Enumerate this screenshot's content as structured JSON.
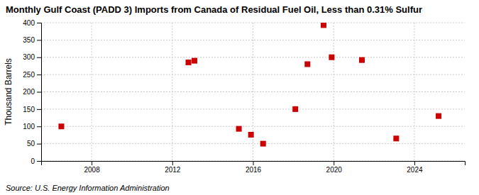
{
  "chart_data": {
    "type": "scatter",
    "title": "Monthly Gulf Coast (PADD 3) Imports from Canada of Residual Fuel Oil, Less than 0.31% Sulfur",
    "ylabel": "Thousand Barrels",
    "source": "Source: U.S. Energy Information Administration",
    "x": [
      2006.5,
      2012.8,
      2013.1,
      2015.3,
      2015.9,
      2016.5,
      2018.1,
      2018.7,
      2019.5,
      2019.9,
      2021.4,
      2023.1,
      2025.2
    ],
    "values": [
      100,
      285,
      290,
      93,
      76,
      50,
      150,
      280,
      393,
      300,
      292,
      65,
      130
    ],
    "color": "#cc0000",
    "marker": "square",
    "xlim": [
      2005.5,
      2026.5
    ],
    "ylim": [
      0,
      400
    ],
    "xticks": [
      2008,
      2012,
      2016,
      2020,
      2024
    ],
    "yticks": [
      0,
      50,
      100,
      150,
      200,
      250,
      300,
      350,
      400
    ],
    "grid": true
  }
}
